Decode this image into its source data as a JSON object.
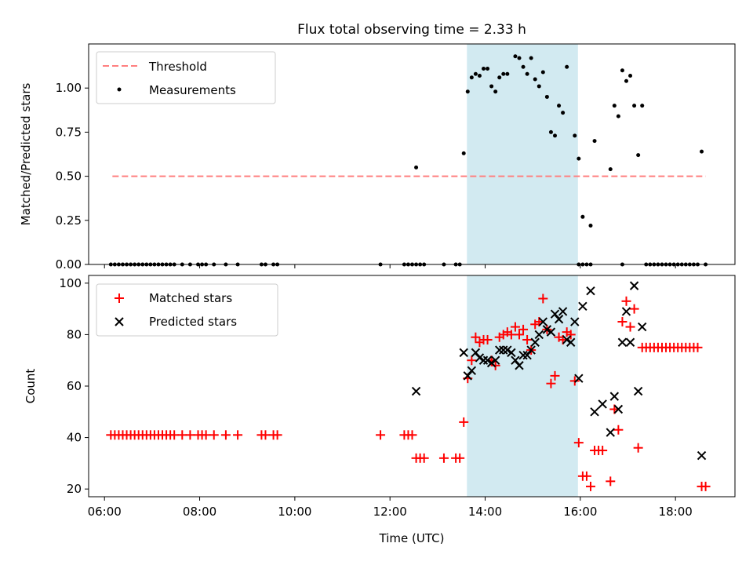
{
  "chart_data": [
    {
      "type": "scatter",
      "title": "Flux total observing time = 2.33 h",
      "xlabel": "",
      "ylabel": "Matched/Predicted stars",
      "xlim": [
        "05:40",
        "19:15"
      ],
      "ylim": [
        0,
        1.25
      ],
      "y_ticks": [
        "0.00",
        "0.25",
        "0.50",
        "0.75",
        "1.00"
      ],
      "legend_position": "upper-left",
      "shaded_interval": {
        "start": "13:37",
        "end": "15:57",
        "color": "#add8e6"
      },
      "threshold": {
        "name": "Threshold",
        "value": 0.5,
        "x_start": "06:10",
        "x_end": "18:38",
        "color": "#ff7f7f"
      },
      "series": [
        {
          "name": "Measurements",
          "color": "#000000",
          "points": [
            [
              "06:08",
              0
            ],
            [
              "06:13",
              0
            ],
            [
              "06:18",
              0
            ],
            [
              "06:23",
              0
            ],
            [
              "06:28",
              0
            ],
            [
              "06:33",
              0
            ],
            [
              "06:38",
              0
            ],
            [
              "06:43",
              0
            ],
            [
              "06:48",
              0
            ],
            [
              "06:53",
              0
            ],
            [
              "06:58",
              0
            ],
            [
              "07:03",
              0
            ],
            [
              "07:08",
              0
            ],
            [
              "07:13",
              0
            ],
            [
              "07:18",
              0
            ],
            [
              "07:23",
              0
            ],
            [
              "07:28",
              0
            ],
            [
              "07:38",
              0
            ],
            [
              "07:48",
              0
            ],
            [
              "07:58",
              0
            ],
            [
              "08:03",
              0
            ],
            [
              "08:08",
              0
            ],
            [
              "08:18",
              0
            ],
            [
              "08:33",
              0
            ],
            [
              "08:48",
              0
            ],
            [
              "09:18",
              0
            ],
            [
              "09:23",
              0
            ],
            [
              "09:33",
              0
            ],
            [
              "09:38",
              0
            ],
            [
              "11:48",
              0
            ],
            [
              "12:18",
              0
            ],
            [
              "12:23",
              0
            ],
            [
              "12:28",
              0
            ],
            [
              "12:33",
              0
            ],
            [
              "12:38",
              0
            ],
            [
              "12:43",
              0
            ],
            [
              "13:08",
              0
            ],
            [
              "13:23",
              0
            ],
            [
              "13:28",
              0
            ],
            [
              "12:33",
              0.55
            ],
            [
              "13:33",
              0.63
            ],
            [
              "13:38",
              0.98
            ],
            [
              "13:43",
              1.06
            ],
            [
              "13:48",
              1.08
            ],
            [
              "13:53",
              1.07
            ],
            [
              "13:58",
              1.11
            ],
            [
              "14:03",
              1.11
            ],
            [
              "14:08",
              1.01
            ],
            [
              "14:13",
              0.98
            ],
            [
              "14:18",
              1.06
            ],
            [
              "14:23",
              1.08
            ],
            [
              "14:28",
              1.08
            ],
            [
              "14:38",
              1.18
            ],
            [
              "14:43",
              1.17
            ],
            [
              "14:48",
              1.12
            ],
            [
              "14:53",
              1.08
            ],
            [
              "14:58",
              1.17
            ],
            [
              "15:03",
              1.05
            ],
            [
              "15:08",
              1.01
            ],
            [
              "15:13",
              1.09
            ],
            [
              "15:18",
              0.95
            ],
            [
              "15:23",
              0.75
            ],
            [
              "15:28",
              0.73
            ],
            [
              "15:33",
              0.9
            ],
            [
              "15:38",
              0.86
            ],
            [
              "15:43",
              1.12
            ],
            [
              "15:53",
              0.73
            ],
            [
              "15:58",
              0.6
            ],
            [
              "16:03",
              0.27
            ],
            [
              "16:13",
              0.22
            ],
            [
              "16:18",
              0.7
            ],
            [
              "16:38",
              0.54
            ],
            [
              "16:43",
              0.9
            ],
            [
              "16:48",
              0.84
            ],
            [
              "16:53",
              1.1
            ],
            [
              "16:58",
              1.04
            ],
            [
              "17:03",
              1.07
            ],
            [
              "17:08",
              0.9
            ],
            [
              "17:13",
              0.62
            ],
            [
              "17:18",
              0.9
            ],
            [
              "18:33",
              0.64
            ],
            [
              "15:58",
              0
            ],
            [
              "16:03",
              0
            ],
            [
              "16:08",
              0
            ],
            [
              "16:13",
              0
            ],
            [
              "16:53",
              0
            ],
            [
              "17:23",
              0
            ],
            [
              "17:28",
              0
            ],
            [
              "17:33",
              0
            ],
            [
              "17:38",
              0
            ],
            [
              "17:43",
              0
            ],
            [
              "17:48",
              0
            ],
            [
              "17:53",
              0
            ],
            [
              "17:58",
              0
            ],
            [
              "18:03",
              0
            ],
            [
              "18:08",
              0
            ],
            [
              "18:13",
              0
            ],
            [
              "18:18",
              0
            ],
            [
              "18:23",
              0
            ],
            [
              "18:28",
              0
            ],
            [
              "18:38",
              0
            ]
          ]
        }
      ]
    },
    {
      "type": "scatter",
      "title": "",
      "xlabel": "Time (UTC)",
      "ylabel": "Count",
      "xlim": [
        "05:40",
        "19:15"
      ],
      "ylim": [
        17,
        103
      ],
      "x_ticks": [
        "06:00",
        "08:00",
        "10:00",
        "12:00",
        "14:00",
        "16:00",
        "18:00"
      ],
      "y_ticks": [
        "20",
        "40",
        "60",
        "80",
        "100"
      ],
      "legend_position": "upper-left",
      "shaded_interval": {
        "start": "13:37",
        "end": "15:57",
        "color": "#add8e6"
      },
      "series": [
        {
          "name": "Matched stars",
          "marker": "plus",
          "color": "#ff0000",
          "points": [
            [
              "06:08",
              41
            ],
            [
              "06:13",
              41
            ],
            [
              "06:18",
              41
            ],
            [
              "06:23",
              41
            ],
            [
              "06:28",
              41
            ],
            [
              "06:33",
              41
            ],
            [
              "06:38",
              41
            ],
            [
              "06:43",
              41
            ],
            [
              "06:48",
              41
            ],
            [
              "06:53",
              41
            ],
            [
              "06:58",
              41
            ],
            [
              "07:03",
              41
            ],
            [
              "07:08",
              41
            ],
            [
              "07:13",
              41
            ],
            [
              "07:18",
              41
            ],
            [
              "07:23",
              41
            ],
            [
              "07:28",
              41
            ],
            [
              "07:38",
              41
            ],
            [
              "07:48",
              41
            ],
            [
              "07:58",
              41
            ],
            [
              "08:03",
              41
            ],
            [
              "08:08",
              41
            ],
            [
              "08:18",
              41
            ],
            [
              "08:33",
              41
            ],
            [
              "08:48",
              41
            ],
            [
              "09:18",
              41
            ],
            [
              "09:23",
              41
            ],
            [
              "09:33",
              41
            ],
            [
              "09:38",
              41
            ],
            [
              "11:48",
              41
            ],
            [
              "12:18",
              41
            ],
            [
              "12:23",
              41
            ],
            [
              "12:28",
              41
            ],
            [
              "12:33",
              32
            ],
            [
              "12:38",
              32
            ],
            [
              "12:43",
              32
            ],
            [
              "13:08",
              32
            ],
            [
              "13:23",
              32
            ],
            [
              "13:28",
              32
            ],
            [
              "13:33",
              46
            ],
            [
              "13:38",
              63
            ],
            [
              "13:43",
              70
            ],
            [
              "13:48",
              79
            ],
            [
              "13:53",
              77
            ],
            [
              "13:58",
              78
            ],
            [
              "14:03",
              78
            ],
            [
              "14:08",
              70
            ],
            [
              "14:13",
              68
            ],
            [
              "14:18",
              79
            ],
            [
              "14:23",
              80
            ],
            [
              "14:28",
              81
            ],
            [
              "14:33",
              80
            ],
            [
              "14:38",
              83
            ],
            [
              "14:43",
              80
            ],
            [
              "14:48",
              82
            ],
            [
              "14:53",
              78
            ],
            [
              "14:58",
              74
            ],
            [
              "15:03",
              84
            ],
            [
              "15:08",
              85
            ],
            [
              "15:13",
              94
            ],
            [
              "15:18",
              82
            ],
            [
              "15:23",
              61
            ],
            [
              "15:28",
              64
            ],
            [
              "15:33",
              79
            ],
            [
              "15:38",
              78
            ],
            [
              "15:43",
              81
            ],
            [
              "15:48",
              80
            ],
            [
              "15:53",
              62
            ],
            [
              "15:58",
              38
            ],
            [
              "16:03",
              25
            ],
            [
              "16:08",
              25
            ],
            [
              "16:13",
              21
            ],
            [
              "16:18",
              35
            ],
            [
              "16:23",
              35
            ],
            [
              "16:28",
              35
            ],
            [
              "16:38",
              23
            ],
            [
              "16:43",
              51
            ],
            [
              "16:48",
              43
            ],
            [
              "16:53",
              85
            ],
            [
              "16:58",
              93
            ],
            [
              "17:03",
              83
            ],
            [
              "17:08",
              90
            ],
            [
              "17:13",
              36
            ],
            [
              "17:18",
              75
            ],
            [
              "17:23",
              75
            ],
            [
              "17:28",
              75
            ],
            [
              "17:33",
              75
            ],
            [
              "17:38",
              75
            ],
            [
              "17:43",
              75
            ],
            [
              "17:48",
              75
            ],
            [
              "17:53",
              75
            ],
            [
              "17:58",
              75
            ],
            [
              "18:03",
              75
            ],
            [
              "18:08",
              75
            ],
            [
              "18:13",
              75
            ],
            [
              "18:18",
              75
            ],
            [
              "18:23",
              75
            ],
            [
              "18:28",
              75
            ],
            [
              "18:33",
              21
            ],
            [
              "18:38",
              21
            ]
          ]
        },
        {
          "name": "Predicted stars",
          "marker": "x",
          "color": "#000000",
          "points": [
            [
              "12:33",
              58
            ],
            [
              "13:33",
              73
            ],
            [
              "13:38",
              64
            ],
            [
              "13:43",
              66
            ],
            [
              "13:48",
              73
            ],
            [
              "13:53",
              71
            ],
            [
              "13:58",
              70
            ],
            [
              "14:03",
              70
            ],
            [
              "14:08",
              69
            ],
            [
              "14:13",
              70
            ],
            [
              "14:18",
              74
            ],
            [
              "14:23",
              74
            ],
            [
              "14:28",
              74
            ],
            [
              "14:33",
              73
            ],
            [
              "14:38",
              70
            ],
            [
              "14:43",
              68
            ],
            [
              "14:48",
              72
            ],
            [
              "14:53",
              72
            ],
            [
              "14:58",
              74
            ],
            [
              "15:03",
              77
            ],
            [
              "15:08",
              80
            ],
            [
              "15:13",
              85
            ],
            [
              "15:18",
              82
            ],
            [
              "15:23",
              81
            ],
            [
              "15:28",
              88
            ],
            [
              "15:33",
              86
            ],
            [
              "15:38",
              89
            ],
            [
              "15:43",
              78
            ],
            [
              "15:48",
              77
            ],
            [
              "15:53",
              85
            ],
            [
              "15:58",
              63
            ],
            [
              "16:03",
              91
            ],
            [
              "16:13",
              97
            ],
            [
              "16:18",
              50
            ],
            [
              "16:28",
              53
            ],
            [
              "16:38",
              42
            ],
            [
              "16:43",
              56
            ],
            [
              "16:48",
              51
            ],
            [
              "16:53",
              77
            ],
            [
              "16:58",
              89
            ],
            [
              "17:03",
              77
            ],
            [
              "17:08",
              99
            ],
            [
              "17:13",
              58
            ],
            [
              "17:18",
              83
            ],
            [
              "18:33",
              33
            ]
          ]
        }
      ]
    }
  ]
}
